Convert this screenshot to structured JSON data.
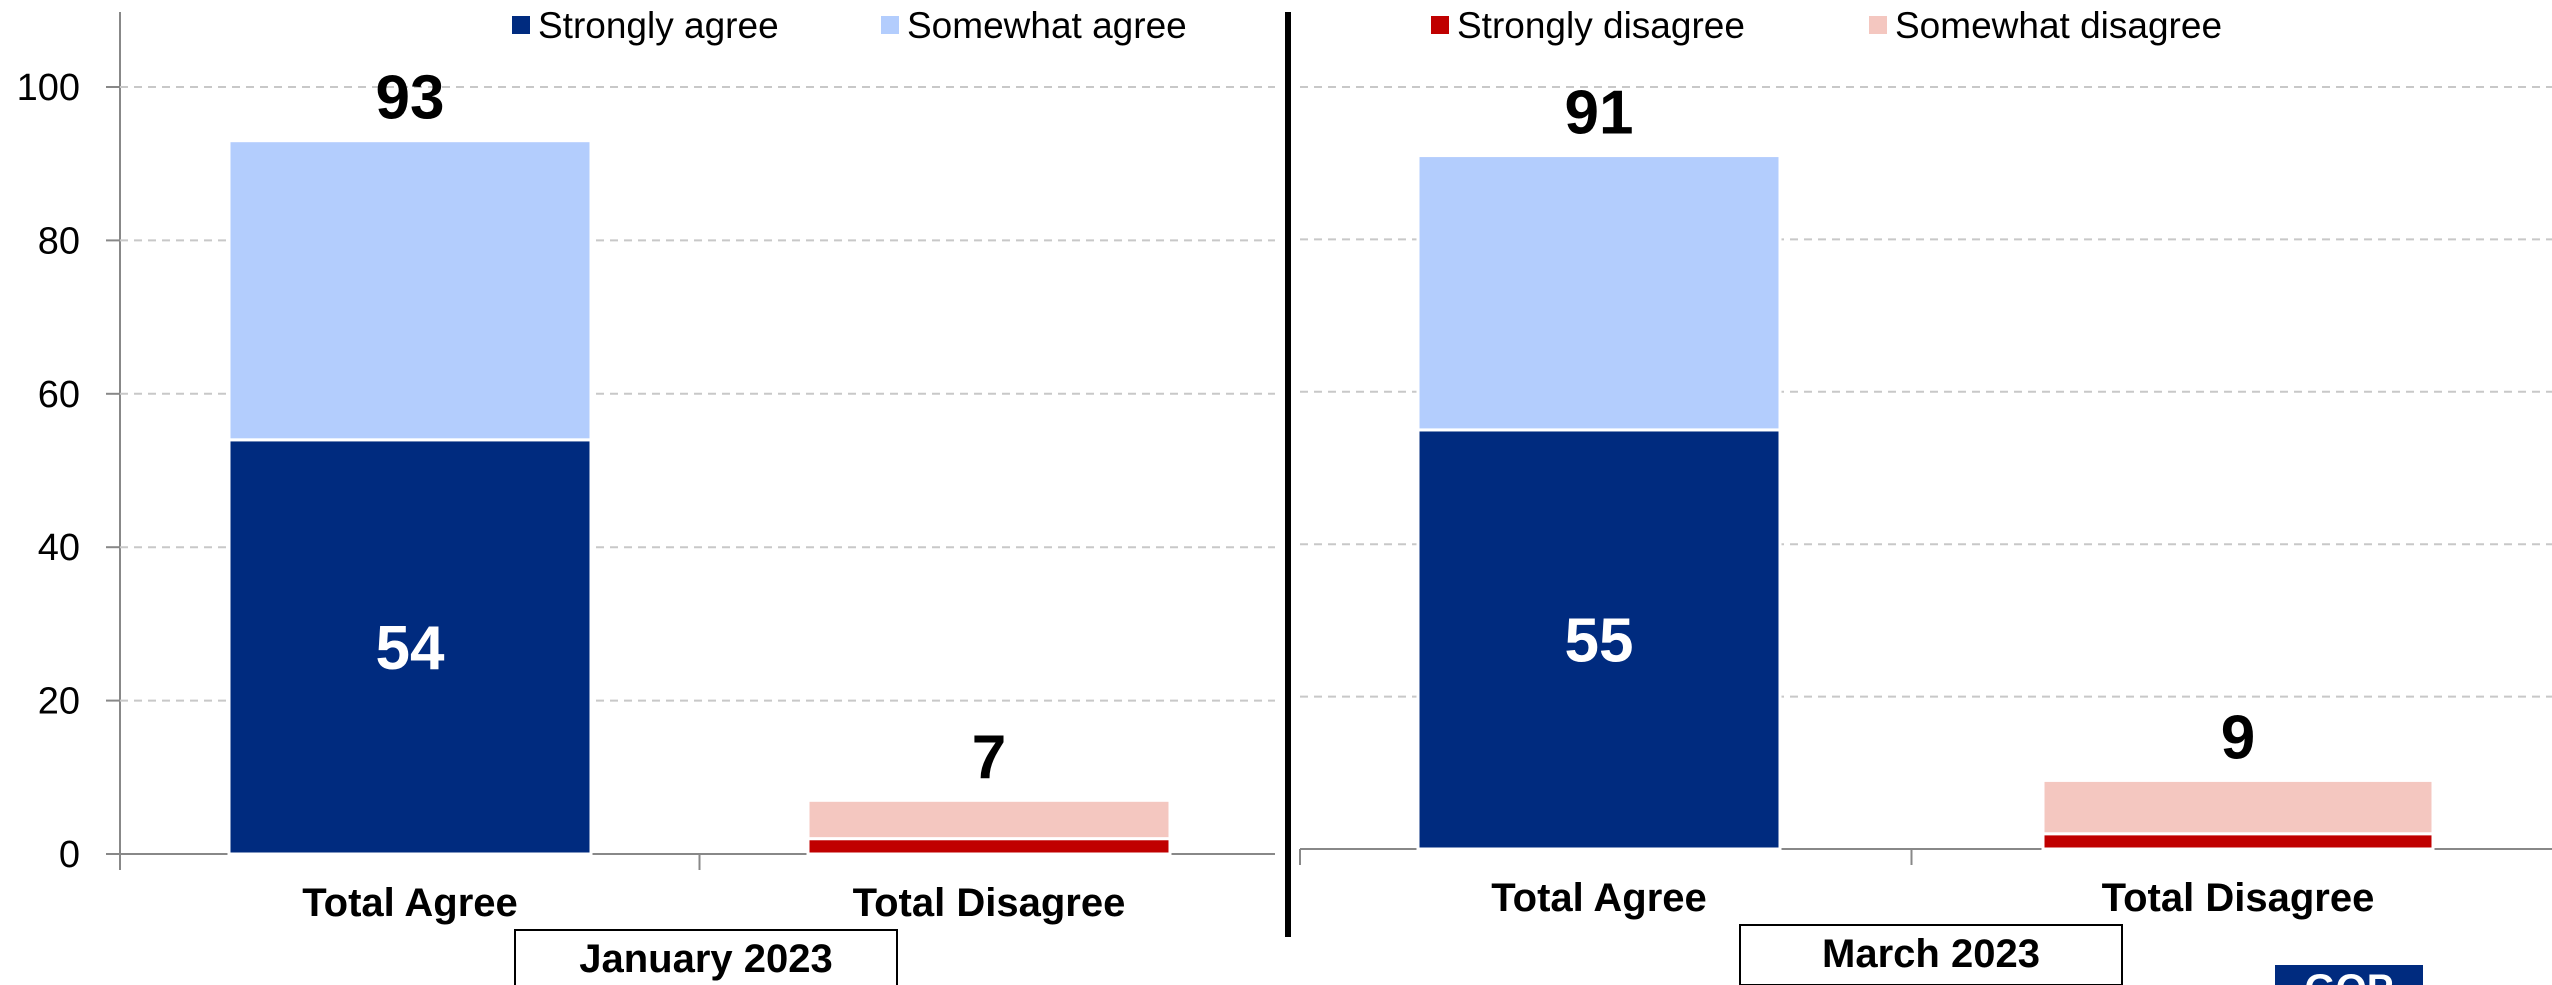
{
  "chart_data": {
    "type": "bar",
    "stacked": true,
    "y_axis": {
      "ylim": [
        0,
        100
      ],
      "ticks": [
        0,
        20,
        40,
        60,
        80,
        100
      ],
      "grid": true
    },
    "legend": {
      "placement": "top",
      "items": [
        {
          "label": "Strongly agree",
          "color": "#002b7f"
        },
        {
          "label": "Somewhat agree",
          "color": "#b3cdfd"
        },
        {
          "label": "Strongly disagree",
          "color": "#c00000"
        },
        {
          "label": "Somewhat disagree",
          "color": "#f4c7c0"
        }
      ]
    },
    "panels": [
      {
        "period": "January 2023",
        "categories": [
          "Total Agree",
          "Total Disagree"
        ],
        "bars": [
          {
            "category": "Total Agree",
            "total": 93,
            "total_label": "93",
            "segments": [
              {
                "series": "Strongly agree",
                "value": 54,
                "color": "#002b7f",
                "label": "54"
              },
              {
                "series": "Somewhat agree",
                "value": 39,
                "color": "#b3cdfd",
                "label": ""
              }
            ]
          },
          {
            "category": "Total Disagree",
            "total": 7,
            "total_label": "7",
            "segments": [
              {
                "series": "Strongly disagree",
                "value": 2,
                "color": "#c00000",
                "label": ""
              },
              {
                "series": "Somewhat disagree",
                "value": 5,
                "color": "#f4c7c0",
                "label": ""
              }
            ]
          }
        ]
      },
      {
        "period": "March 2023",
        "categories": [
          "Total Agree",
          "Total Disagree"
        ],
        "bars": [
          {
            "category": "Total Agree",
            "total": 91,
            "total_label": "91",
            "segments": [
              {
                "series": "Strongly agree",
                "value": 55,
                "color": "#002b7f",
                "label": "55"
              },
              {
                "series": "Somewhat agree",
                "value": 36,
                "color": "#b3cdfd",
                "label": ""
              }
            ]
          },
          {
            "category": "Total Disagree",
            "total": 9,
            "total_label": "9",
            "segments": [
              {
                "series": "Strongly disagree",
                "value": 2,
                "color": "#c00000",
                "label": ""
              },
              {
                "series": "Somewhat disagree",
                "value": 7,
                "color": "#f4c7c0",
                "label": ""
              }
            ]
          }
        ]
      }
    ]
  },
  "logo": {
    "text": "GOP",
    "color": "#002b7f"
  }
}
